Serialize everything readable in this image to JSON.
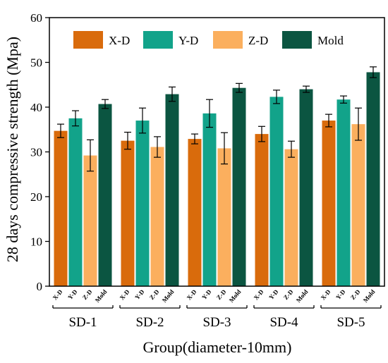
{
  "chart_data": {
    "type": "bar",
    "title": "",
    "ylabel": "28 days compressive strength (Mpa)",
    "xlabel": "Group(diameter-10mm)",
    "ylim": [
      0,
      60
    ],
    "yticks": [
      0,
      10,
      20,
      30,
      40,
      50,
      60
    ],
    "grid": false,
    "legend_position": "top",
    "categories": [
      "SD-1",
      "SD-2",
      "SD-3",
      "SD-4",
      "SD-5"
    ],
    "sub_labels": [
      "X-D",
      "Y-D",
      "Z-D",
      "Mold"
    ],
    "series": [
      {
        "name": "X-D",
        "color": "#D96B0C",
        "values": [
          34.7,
          32.5,
          32.9,
          34.0,
          37.0
        ],
        "errors": [
          1.5,
          1.9,
          1.1,
          1.7,
          1.4
        ]
      },
      {
        "name": "Y-D",
        "color": "#12A38A",
        "values": [
          37.5,
          37.0,
          38.6,
          42.3,
          41.7
        ],
        "errors": [
          1.7,
          2.8,
          3.1,
          1.5,
          0.8
        ]
      },
      {
        "name": "Z-D",
        "color": "#FBAF5E",
        "values": [
          29.2,
          31.1,
          30.8,
          30.6,
          36.2
        ],
        "errors": [
          3.5,
          2.3,
          3.5,
          1.8,
          3.6
        ]
      },
      {
        "name": "Mold",
        "color": "#0B5541",
        "values": [
          40.7,
          42.9,
          44.3,
          44.0,
          47.8
        ],
        "errors": [
          1.0,
          1.6,
          1.0,
          0.7,
          1.2
        ]
      }
    ]
  }
}
